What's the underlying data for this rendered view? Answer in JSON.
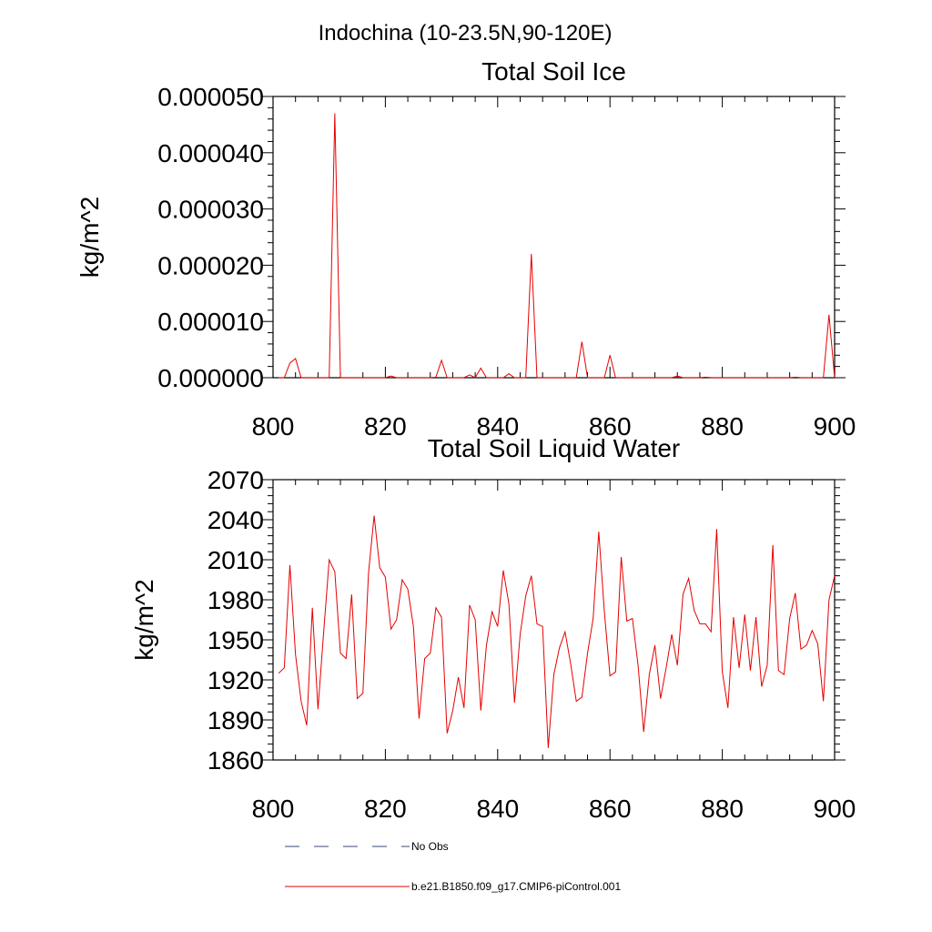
{
  "super_title": "Indochina (10-23.5N,90-120E)",
  "legend": [
    {
      "label": "No Obs",
      "color": "#3a4a7a",
      "dash": true
    },
    {
      "label": "b.e21.B1850.f09_g17.CMIP6-piControl.001",
      "color": "#e60000",
      "dash": false
    }
  ],
  "chart_data": [
    {
      "type": "line",
      "title": "Total Soil Ice",
      "ylabel": "kg/m^2",
      "xlabel": "",
      "xlim": [
        800,
        900
      ],
      "ylim": [
        0,
        5e-05
      ],
      "xticks": [
        800,
        820,
        840,
        860,
        880,
        900
      ],
      "yticks": [
        0,
        1e-05,
        2e-05,
        3e-05,
        4e-05,
        5e-05
      ],
      "ytick_labels": [
        "0.000000",
        "0.000010",
        "0.000020",
        "0.000030",
        "0.000040",
        "0.000050"
      ],
      "series": [
        {
          "name": "b.e21.B1850.f09_g17.CMIP6-piControl.001",
          "color": "#e60000",
          "x": [
            801,
            802,
            803,
            804,
            805,
            806,
            807,
            808,
            809,
            810,
            811,
            812,
            813,
            814,
            815,
            816,
            817,
            818,
            819,
            820,
            821,
            822,
            823,
            824,
            825,
            826,
            827,
            828,
            829,
            830,
            831,
            832,
            833,
            834,
            835,
            836,
            837,
            838,
            839,
            840,
            841,
            842,
            843,
            844,
            845,
            846,
            847,
            848,
            849,
            850,
            851,
            852,
            853,
            854,
            855,
            856,
            857,
            858,
            859,
            860,
            861,
            862,
            863,
            864,
            865,
            866,
            867,
            868,
            869,
            870,
            871,
            872,
            873,
            874,
            875,
            876,
            877,
            878,
            879,
            880,
            881,
            882,
            883,
            884,
            885,
            886,
            887,
            888,
            889,
            890,
            891,
            892,
            893,
            894,
            895,
            896,
            897,
            898,
            899,
            900
          ],
          "y": [
            0,
            0,
            2.6e-06,
            3.4e-06,
            0,
            0,
            0,
            0,
            0,
            0,
            4.7e-05,
            0,
            0,
            0,
            0,
            0,
            0,
            0,
            0,
            0,
            3e-07,
            0,
            0,
            0,
            0,
            0,
            0,
            0,
            1e-07,
            3.1e-06,
            0,
            0,
            0,
            0,
            5e-07,
            0,
            1.7e-06,
            0,
            0,
            0,
            0,
            7e-07,
            0,
            0,
            0,
            2.2e-05,
            0,
            0,
            0,
            0,
            0,
            0,
            0,
            0,
            6.4e-06,
            0,
            0,
            0,
            0,
            4e-06,
            0,
            0,
            0,
            0,
            0,
            0,
            0,
            0,
            0,
            0,
            0,
            3e-07,
            0,
            0,
            0,
            0,
            1e-07,
            0,
            0,
            0,
            0,
            0,
            0,
            0,
            0,
            0,
            0,
            0,
            0,
            0,
            0,
            0,
            1e-07,
            0,
            0,
            0,
            0,
            0,
            1.12e-05,
            0
          ]
        }
      ]
    },
    {
      "type": "line",
      "title": "Total Soil Liquid Water",
      "ylabel": "kg/m^2",
      "xlabel": "",
      "xlim": [
        800,
        900
      ],
      "ylim": [
        1860,
        2070
      ],
      "xticks": [
        800,
        820,
        840,
        860,
        880,
        900
      ],
      "yticks": [
        1860,
        1890,
        1920,
        1950,
        1980,
        2010,
        2040,
        2070
      ],
      "ytick_labels": [
        "1860",
        "1890",
        "1920",
        "1950",
        "1980",
        "2010",
        "2040",
        "2070"
      ],
      "series": [
        {
          "name": "b.e21.B1850.f09_g17.CMIP6-piControl.001",
          "color": "#e60000",
          "x": [
            801,
            802,
            803,
            804,
            805,
            806,
            807,
            808,
            809,
            810,
            811,
            812,
            813,
            814,
            815,
            816,
            817,
            818,
            819,
            820,
            821,
            822,
            823,
            824,
            825,
            826,
            827,
            828,
            829,
            830,
            831,
            832,
            833,
            834,
            835,
            836,
            837,
            838,
            839,
            840,
            841,
            842,
            843,
            844,
            845,
            846,
            847,
            848,
            849,
            850,
            851,
            852,
            853,
            854,
            855,
            856,
            857,
            858,
            859,
            860,
            861,
            862,
            863,
            864,
            865,
            866,
            867,
            868,
            869,
            870,
            871,
            872,
            873,
            874,
            875,
            876,
            877,
            878,
            879,
            880,
            881,
            882,
            883,
            884,
            885,
            886,
            887,
            888,
            889,
            890,
            891,
            892,
            893,
            894,
            895,
            896,
            897,
            898,
            899,
            900
          ],
          "y": [
            1925,
            1929,
            2006,
            1939,
            1904,
            1886,
            1974,
            1898,
            1955,
            2010,
            2001,
            1940,
            1936,
            1984,
            1906,
            1910,
            2000,
            2043,
            2004,
            1997,
            1958,
            1965,
            1995,
            1988,
            1960,
            1891,
            1936,
            1940,
            1974,
            1967,
            1880,
            1897,
            1922,
            1899,
            1976,
            1965,
            1897,
            1946,
            1971,
            1960,
            2002,
            1977,
            1903,
            1954,
            1983,
            1998,
            1962,
            1960,
            1869,
            1924,
            1944,
            1956,
            1932,
            1904,
            1907,
            1940,
            1966,
            2031,
            1971,
            1923,
            1926,
            2012,
            1964,
            1966,
            1931,
            1881,
            1924,
            1946,
            1906,
            1929,
            1954,
            1931,
            1984,
            1996,
            1972,
            1962,
            1962,
            1956,
            2033,
            1926,
            1899,
            1967,
            1929,
            1969,
            1927,
            1967,
            1915,
            1931,
            2021,
            1927,
            1924,
            1966,
            1985,
            1943,
            1946,
            1957,
            1947,
            1904,
            1980,
            1998
          ]
        }
      ]
    }
  ]
}
